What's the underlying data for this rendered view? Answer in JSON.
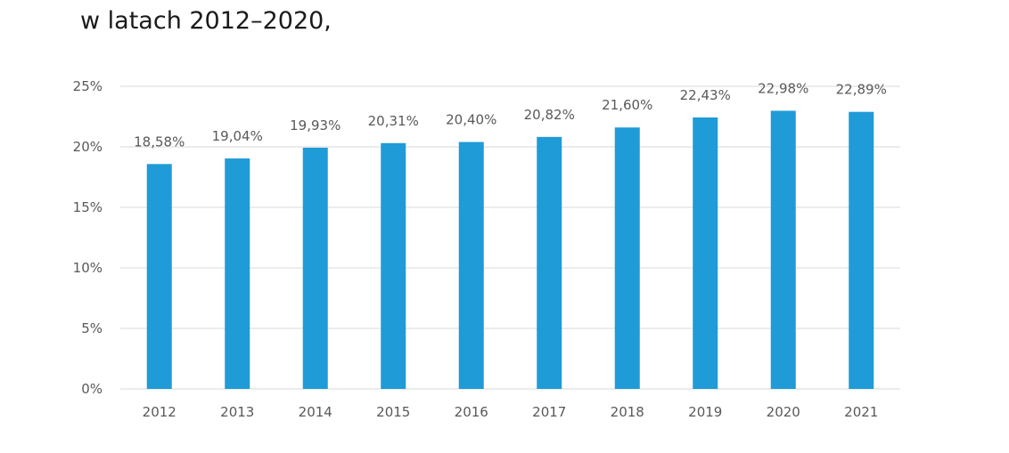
{
  "caption": {
    "line2": "w latach 2012–2020,"
  },
  "chart_data": {
    "type": "bar",
    "title": "",
    "xlabel": "",
    "ylabel": "",
    "categories": [
      "2012",
      "2013",
      "2014",
      "2015",
      "2016",
      "2017",
      "2018",
      "2019",
      "2020",
      "2021"
    ],
    "values": [
      18.58,
      19.04,
      19.93,
      20.31,
      20.4,
      20.82,
      21.6,
      22.43,
      22.98,
      22.89
    ],
    "data_labels": [
      "18,58%",
      "19,04%",
      "19,93%",
      "20,31%",
      "20,40%",
      "20,82%",
      "21,60%",
      "22,43%",
      "22,98%",
      "22,89%"
    ],
    "ylim": [
      0,
      25
    ],
    "yticks": [
      0,
      5,
      10,
      15,
      20,
      25
    ],
    "ytick_labels": [
      "0%",
      "5%",
      "10%",
      "15%",
      "20%",
      "25%"
    ],
    "grid": true,
    "colors": {
      "bar": "#1f9bd7",
      "grid": "#d9d9d9",
      "label": "#595959"
    }
  }
}
